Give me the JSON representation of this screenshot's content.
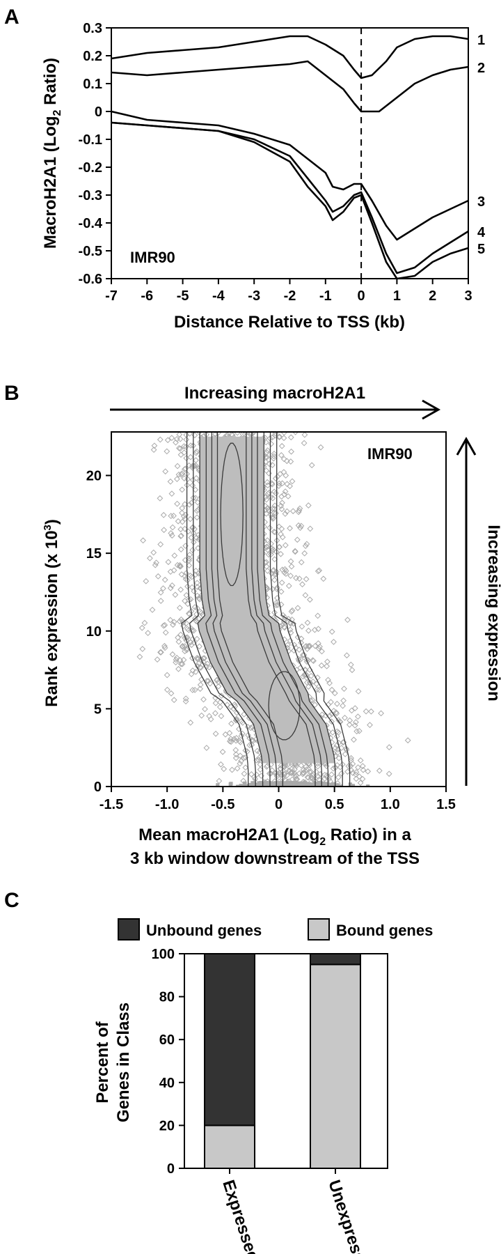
{
  "chart_data": [
    {
      "panel": "A",
      "type": "line",
      "ylabel_main": "MacroH2A1 (Log",
      "ylabel_sub": "2",
      "ylabel_end": " Ratio)",
      "xlabel": "Distance Relative to TSS (kb)",
      "annotation": "IMR90",
      "xlim": [
        -7,
        3
      ],
      "ylim": [
        -0.6,
        0.3
      ],
      "xticks": [
        "-7",
        "-6",
        "-5",
        "-4",
        "-3",
        "-2",
        "-1",
        "0",
        "1",
        "2",
        "3"
      ],
      "yticks": [
        "0.3",
        "0.2",
        "0.1",
        "0",
        "-0.1",
        "-0.2",
        "-0.3",
        "-0.4",
        "-0.5",
        "-0.6"
      ],
      "reference_line_x": 0,
      "series": [
        {
          "name": "1",
          "x": [
            -7,
            -6,
            -5,
            -4,
            -3,
            -2,
            -1.5,
            -1,
            -0.5,
            -0.2,
            0,
            0.3,
            0.7,
            1,
            1.5,
            2,
            2.5,
            3
          ],
          "y": [
            0.19,
            0.21,
            0.22,
            0.23,
            0.25,
            0.27,
            0.27,
            0.24,
            0.2,
            0.15,
            0.12,
            0.13,
            0.18,
            0.23,
            0.26,
            0.27,
            0.27,
            0.26
          ]
        },
        {
          "name": "2",
          "x": [
            -7,
            -6,
            -5,
            -4,
            -3,
            -2,
            -1.5,
            -1,
            -0.5,
            -0.2,
            0,
            0.5,
            1,
            1.5,
            2,
            2.5,
            3
          ],
          "y": [
            0.14,
            0.13,
            0.14,
            0.15,
            0.16,
            0.17,
            0.18,
            0.13,
            0.08,
            0.03,
            0.0,
            0.0,
            0.05,
            0.1,
            0.13,
            0.15,
            0.16
          ]
        },
        {
          "name": "3",
          "x": [
            -7,
            -6,
            -5,
            -4,
            -3,
            -2,
            -1.5,
            -1,
            -0.8,
            -0.5,
            -0.2,
            0,
            0.3,
            0.7,
            1,
            1.5,
            2,
            2.5,
            3
          ],
          "y": [
            0.0,
            -0.03,
            -0.04,
            -0.05,
            -0.08,
            -0.12,
            -0.17,
            -0.22,
            -0.27,
            -0.28,
            -0.26,
            -0.26,
            -0.32,
            -0.41,
            -0.46,
            -0.42,
            -0.38,
            -0.35,
            -0.32
          ]
        },
        {
          "name": "4",
          "x": [
            -7,
            -6,
            -5,
            -4,
            -3,
            -2,
            -1.5,
            -1,
            -0.8,
            -0.5,
            -0.2,
            0,
            0.3,
            0.7,
            1,
            1.5,
            2,
            2.5,
            3
          ],
          "y": [
            -0.04,
            -0.05,
            -0.06,
            -0.07,
            -0.1,
            -0.16,
            -0.24,
            -0.32,
            -0.36,
            -0.34,
            -0.3,
            -0.29,
            -0.38,
            -0.51,
            -0.58,
            -0.56,
            -0.51,
            -0.47,
            -0.43
          ]
        },
        {
          "name": "5",
          "x": [
            -7,
            -6,
            -5,
            -4,
            -3,
            -2,
            -1.5,
            -1,
            -0.8,
            -0.5,
            -0.2,
            0,
            0.3,
            0.7,
            1,
            1.5,
            2,
            2.5,
            3
          ],
          "y": [
            -0.04,
            -0.05,
            -0.06,
            -0.07,
            -0.11,
            -0.18,
            -0.27,
            -0.34,
            -0.39,
            -0.36,
            -0.31,
            -0.3,
            -0.4,
            -0.54,
            -0.6,
            -0.59,
            -0.54,
            -0.51,
            -0.49
          ]
        }
      ]
    },
    {
      "panel": "B",
      "type": "scatter",
      "arrow_top": "Increasing macroH2A1",
      "arrow_right": "Increasing expression",
      "annotation": "IMR90",
      "ylabel_main": "Rank expression (x 10",
      "ylabel_sup": "3",
      "ylabel_end": ")",
      "xlabel_line1_main": "Mean macroH2A1 (Log",
      "xlabel_line1_sub": "2",
      "xlabel_line1_end": " Ratio) in a",
      "xlabel_line2": "3 kb window downstream of the TSS",
      "xlim": [
        -1.5,
        1.5
      ],
      "ylim": [
        0,
        22.8
      ],
      "xticks": [
        "-1.5",
        "-1.0",
        "-0.5",
        "0",
        "0.5",
        "1.0",
        "1.5"
      ],
      "yticks": [
        "0",
        "5",
        "10",
        "15",
        "20"
      ],
      "ridge": {
        "y": [
          0,
          2,
          4,
          6,
          8,
          10,
          12,
          14,
          16,
          18,
          20,
          22.8
        ],
        "x": [
          0.2,
          0.17,
          0.1,
          -0.1,
          -0.25,
          -0.35,
          -0.4,
          -0.42,
          -0.42,
          -0.42,
          -0.42,
          -0.42
        ]
      }
    },
    {
      "panel": "C",
      "type": "bar",
      "stacked": true,
      "ylabel_line1": "Percent of",
      "ylabel_line2": "Genes in Class",
      "categories": [
        "Expressed",
        "Unexpressed"
      ],
      "ylim": [
        0,
        100
      ],
      "yticks": [
        "0",
        "20",
        "40",
        "60",
        "80",
        "100"
      ],
      "series": [
        {
          "name": "Bound genes",
          "values": [
            20,
            95
          ]
        },
        {
          "name": "Unbound genes",
          "values": [
            80,
            5
          ]
        }
      ]
    }
  ],
  "colors": {
    "unbound": "#333333",
    "bound": "#c8c8c8",
    "scatter": "#a9a9a9",
    "line": "#000000",
    "contour": "#3a3a3a"
  }
}
